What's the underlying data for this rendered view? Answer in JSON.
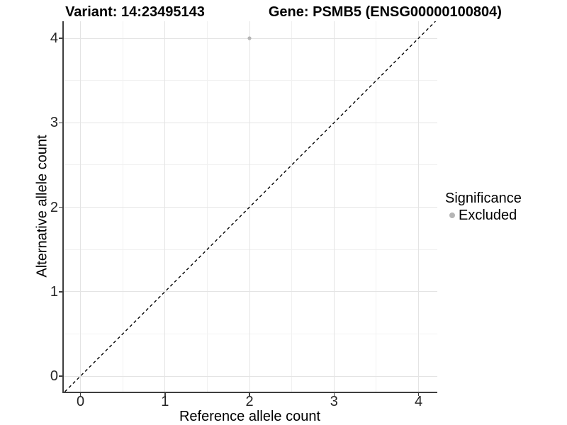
{
  "title": {
    "left": "Variant: 14:23495143",
    "right": "Gene: PSMB5 (ENSG00000100804)"
  },
  "legend": {
    "title": "Significance",
    "items": [
      {
        "label": "Excluded",
        "color": "#b5b5b5"
      }
    ]
  },
  "chart_data": {
    "type": "scatter",
    "title": "Variant: 14:23495143    Gene: PSMB5 (ENSG00000100804)",
    "xlabel": "Reference allele count",
    "ylabel": "Alternative allele count",
    "xlim": [
      -0.21,
      4.22
    ],
    "ylim": [
      -0.18,
      4.2
    ],
    "x_ticks": [
      0,
      1,
      2,
      3,
      4
    ],
    "y_ticks": [
      0,
      1,
      2,
      3,
      4
    ],
    "x_minor_ticks": [
      0.5,
      1.5,
      2.5,
      3.5
    ],
    "y_minor_ticks": [
      0.5,
      1.5,
      2.5,
      3.5
    ],
    "grid": "major+minor",
    "legend_position": "right",
    "series": [
      {
        "name": "Excluded",
        "color": "#b5b5b5",
        "points": [
          {
            "x": 2,
            "y": 4
          }
        ]
      }
    ],
    "reference_line": {
      "slope": 1,
      "intercept": 0,
      "style": "dashed",
      "color": "#000000"
    }
  },
  "colors": {
    "grid_major": "#e4e4e4",
    "grid_minor": "#f1f1f1",
    "axis_line": "#3f3f3f",
    "tick_text": "#262626",
    "point": "#b5b5b5"
  }
}
